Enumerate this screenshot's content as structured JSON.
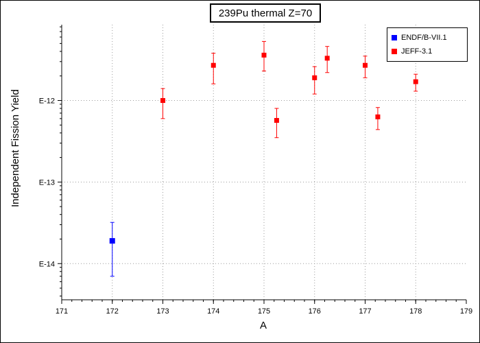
{
  "chart_data": {
    "type": "scatter",
    "title": "239Pu thermal Z=70",
    "xlabel": "A",
    "ylabel": "Independent Fission Yield",
    "xlim": [
      171,
      179
    ],
    "ylim": [
      3.6e-15,
      8.5e-12
    ],
    "yscale": "log",
    "grid": true,
    "legend_position": "top-right",
    "x_ticks": [
      "171",
      "172",
      "173",
      "174",
      "175",
      "176",
      "177",
      "178",
      "179"
    ],
    "y_ticks": [
      {
        "value": 1e-12,
        "label": "E-12"
      },
      {
        "value": 1e-13,
        "label": "E-13"
      },
      {
        "value": 1e-14,
        "label": "E-14"
      }
    ],
    "series": [
      {
        "name": "ENDF/B-VII.1",
        "color": "#0000ff",
        "points": [
          {
            "x": 172,
            "y": 1.9e-14,
            "ylo": 7e-15,
            "yhi": 3.2e-14
          }
        ]
      },
      {
        "name": "JEFF-3.1",
        "color": "#ff0000",
        "points": [
          {
            "x": 173,
            "y": 1e-12,
            "ylo": 6e-13,
            "yhi": 1.4e-12
          },
          {
            "x": 174,
            "y": 2.7e-12,
            "ylo": 1.6e-12,
            "yhi": 3.8e-12
          },
          {
            "x": 175,
            "y": 3.6e-12,
            "ylo": 2.3e-12,
            "yhi": 5.3e-12
          },
          {
            "x": 175.25,
            "y": 5.7e-13,
            "ylo": 3.5e-13,
            "yhi": 8e-13
          },
          {
            "x": 176,
            "y": 1.9e-12,
            "ylo": 1.2e-12,
            "yhi": 2.6e-12
          },
          {
            "x": 176.25,
            "y": 3.3e-12,
            "ylo": 2.2e-12,
            "yhi": 4.6e-12
          },
          {
            "x": 177,
            "y": 2.7e-12,
            "ylo": 1.9e-12,
            "yhi": 3.5e-12
          },
          {
            "x": 177.25,
            "y": 6.3e-13,
            "ylo": 4.4e-13,
            "yhi": 8.2e-13
          },
          {
            "x": 178,
            "y": 1.7e-12,
            "ylo": 1.3e-12,
            "yhi": 2.1e-12
          }
        ]
      }
    ]
  }
}
